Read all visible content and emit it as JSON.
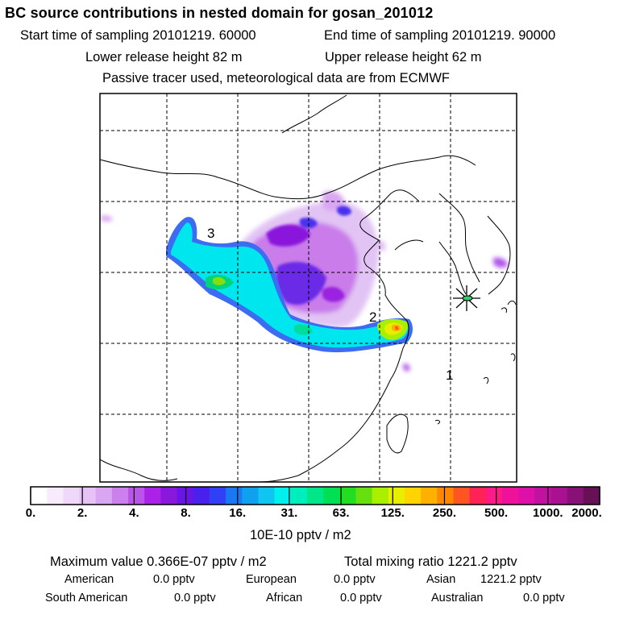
{
  "header": {
    "title": "BC  source contributions in nested domain for gosan_201012",
    "start_time": "Start time of sampling 20101219. 60000",
    "end_time": "End time of sampling 20101219. 90000",
    "lower_release": "Lower release height   82 m",
    "upper_release": "Upper release height   62 m",
    "note": "Passive tracer used, meteorological data are from ECMWF"
  },
  "map": {
    "region_labels": [
      "1",
      "2",
      "3"
    ],
    "receptor": "gosan"
  },
  "colorbar": {
    "colors": [
      "#ffffff",
      "#f8ecfc",
      "#f0d8fa",
      "#e6c2f6",
      "#d9a6f2",
      "#cc80ee",
      "#bb55ea",
      "#aa22e6",
      "#8a18dc",
      "#6a14e6",
      "#4a20ee",
      "#3040f5",
      "#1a78f2",
      "#10a0f0",
      "#10c6f0",
      "#00f0ee",
      "#00eebb",
      "#00e688",
      "#00e055",
      "#22dd22",
      "#66e011",
      "#aaee00",
      "#e8ee00",
      "#ffd400",
      "#ffb000",
      "#ff8800",
      "#ff5522",
      "#ff2255",
      "#ff1a88",
      "#ee1199",
      "#dd11aa",
      "#c011a0",
      "#aa1190",
      "#881177",
      "#661155"
    ],
    "tick_labels": [
      "0.",
      "2.",
      "4.",
      "8.",
      "16.",
      "31.",
      "63.",
      "125.",
      "250.",
      "500.",
      "1000.",
      "2000."
    ],
    "units": "10E-10 pptv / m2"
  },
  "summary": {
    "max_value": "Maximum value  0.366E-07 pptv / m2",
    "total_mixing": "Total mixing ratio     1221.2 pptv"
  },
  "contributions": [
    {
      "name": "American",
      "value": "0.0 pptv"
    },
    {
      "name": "European",
      "value": "0.0 pptv"
    },
    {
      "name": "Asian",
      "value": "1221.2 pptv"
    },
    {
      "name": "South American",
      "value": "0.0 pptv"
    },
    {
      "name": "African",
      "value": "0.0 pptv"
    },
    {
      "name": "Australian",
      "value": "0.0 pptv"
    }
  ]
}
